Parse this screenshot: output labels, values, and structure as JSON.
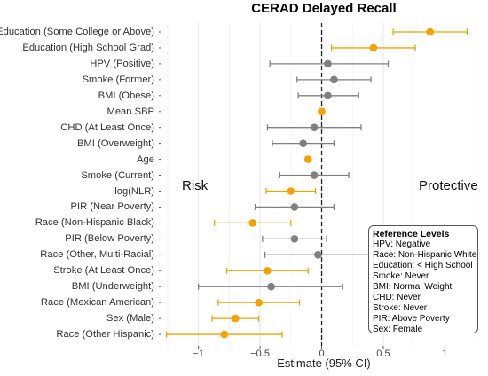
{
  "chart_data": {
    "type": "forest",
    "title": "CERAD Delayed Recall",
    "xlabel": "Estimate (95% CI)",
    "xlim": [
      -1.3,
      1.35
    ],
    "x_ticks": [
      "−1",
      "−0.5",
      "0",
      "0.5",
      "1"
    ],
    "x_tick_values": [
      -1,
      -0.5,
      0,
      0.5,
      1
    ],
    "reference_line": 0,
    "grid": true,
    "side_labels": {
      "left": "Risk",
      "right": "Protective"
    },
    "colors": {
      "significant": "#f5a100",
      "nonsignificant": "#808080"
    },
    "rows": [
      {
        "label": "Education (Some College or Above)",
        "estimate": 0.88,
        "low": 0.58,
        "high": 1.18,
        "significant": true
      },
      {
        "label": "Education (High School Grad)",
        "estimate": 0.42,
        "low": 0.08,
        "high": 0.76,
        "significant": true
      },
      {
        "label": "HPV (Positive)",
        "estimate": 0.05,
        "low": -0.42,
        "high": 0.54,
        "significant": false
      },
      {
        "label": "Smoke (Former)",
        "estimate": 0.1,
        "low": -0.2,
        "high": 0.4,
        "significant": false
      },
      {
        "label": "BMI (Obese)",
        "estimate": 0.05,
        "low": -0.19,
        "high": 0.3,
        "significant": false
      },
      {
        "label": "Mean SBP",
        "estimate": 0.0,
        "low": -0.02,
        "high": 0.02,
        "significant": true
      },
      {
        "label": "CHD (At Least Once)",
        "estimate": -0.06,
        "low": -0.44,
        "high": 0.32,
        "significant": false
      },
      {
        "label": "BMI (Overweight)",
        "estimate": -0.15,
        "low": -0.4,
        "high": 0.1,
        "significant": false
      },
      {
        "label": "Age",
        "estimate": -0.11,
        "low": -0.13,
        "high": -0.09,
        "significant": true
      },
      {
        "label": "Smoke (Current)",
        "estimate": -0.06,
        "low": -0.34,
        "high": 0.22,
        "significant": false
      },
      {
        "label": "log(NLR)",
        "estimate": -0.25,
        "low": -0.45,
        "high": -0.05,
        "significant": true
      },
      {
        "label": "PIR (Near Poverty)",
        "estimate": -0.22,
        "low": -0.54,
        "high": 0.1,
        "significant": false
      },
      {
        "label": "Race (Non-Hispanic Black)",
        "estimate": -0.56,
        "low": -0.87,
        "high": -0.25,
        "significant": true
      },
      {
        "label": "PIR (Below Poverty)",
        "estimate": -0.22,
        "low": -0.48,
        "high": 0.04,
        "significant": false
      },
      {
        "label": "Race (Other, Multi-Racial)",
        "estimate": -0.03,
        "low": -0.46,
        "high": 0.4,
        "significant": false
      },
      {
        "label": "Stroke (At Least Once)",
        "estimate": -0.44,
        "low": -0.77,
        "high": -0.11,
        "significant": true
      },
      {
        "label": "BMI (Underweight)",
        "estimate": -0.41,
        "low": -1.0,
        "high": 0.17,
        "significant": false
      },
      {
        "label": "Race (Mexican American)",
        "estimate": -0.51,
        "low": -0.84,
        "high": -0.18,
        "significant": true
      },
      {
        "label": "Sex (Male)",
        "estimate": -0.7,
        "low": -0.89,
        "high": -0.51,
        "significant": true
      },
      {
        "label": "Race (Other Hispanic)",
        "estimate": -0.79,
        "low": -1.26,
        "high": -0.32,
        "significant": true
      }
    ],
    "legend": {
      "title": "Reference Levels",
      "lines": [
        "HPV: Negative",
        "Race: Non-Hispanic White",
        "Education: < High School",
        "Smoke: Never",
        "BMI: Normal Weight",
        "CHD: Never",
        "Stroke: Never",
        "PIR: Above Poverty",
        "Sex: Female"
      ],
      "placement": "bottom-right"
    }
  }
}
